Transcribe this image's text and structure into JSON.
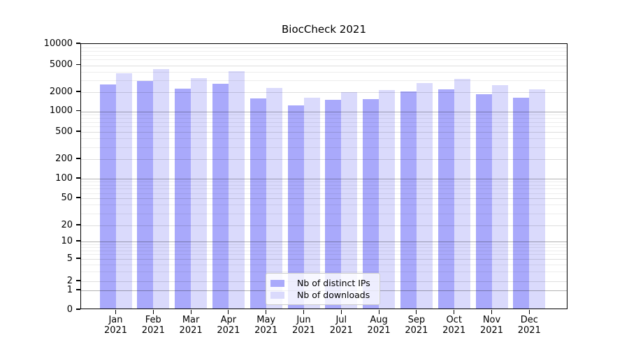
{
  "chart_data": {
    "type": "bar",
    "title": "BiocCheck 2021",
    "categories": [
      "Jan",
      "Feb",
      "Mar",
      "Apr",
      "May",
      "Jun",
      "Jul",
      "Aug",
      "Sep",
      "Oct",
      "Nov",
      "Dec"
    ],
    "x_tick_second_line": "2021",
    "series": [
      {
        "name": "Nb of distinct IPs",
        "color": "#a9a9fb",
        "values": [
          2600,
          2950,
          2250,
          2650,
          1600,
          1230,
          1530,
          1560,
          2030,
          2220,
          1850,
          1620
        ]
      },
      {
        "name": "Nb of downloads",
        "color": "#dadafc",
        "values": [
          3800,
          4400,
          3250,
          4100,
          2300,
          1650,
          2020,
          2170,
          2750,
          3180,
          2550,
          2190
        ]
      }
    ],
    "yscale": "log-with-zero-baseline",
    "y_ticks": [
      10000,
      5000,
      2000,
      1000,
      500,
      200,
      100,
      50,
      20,
      10,
      5,
      2,
      1,
      0
    ],
    "y_tick_labels": [
      "10000",
      "5000",
      "2000",
      "1000",
      "500",
      "200",
      "100",
      "50",
      "20",
      "10",
      "5",
      "2",
      "1",
      "0"
    ],
    "ylim": [
      0,
      10000
    ],
    "grid": "both-major-and-minor",
    "legend_position": "lower-center-inside"
  }
}
